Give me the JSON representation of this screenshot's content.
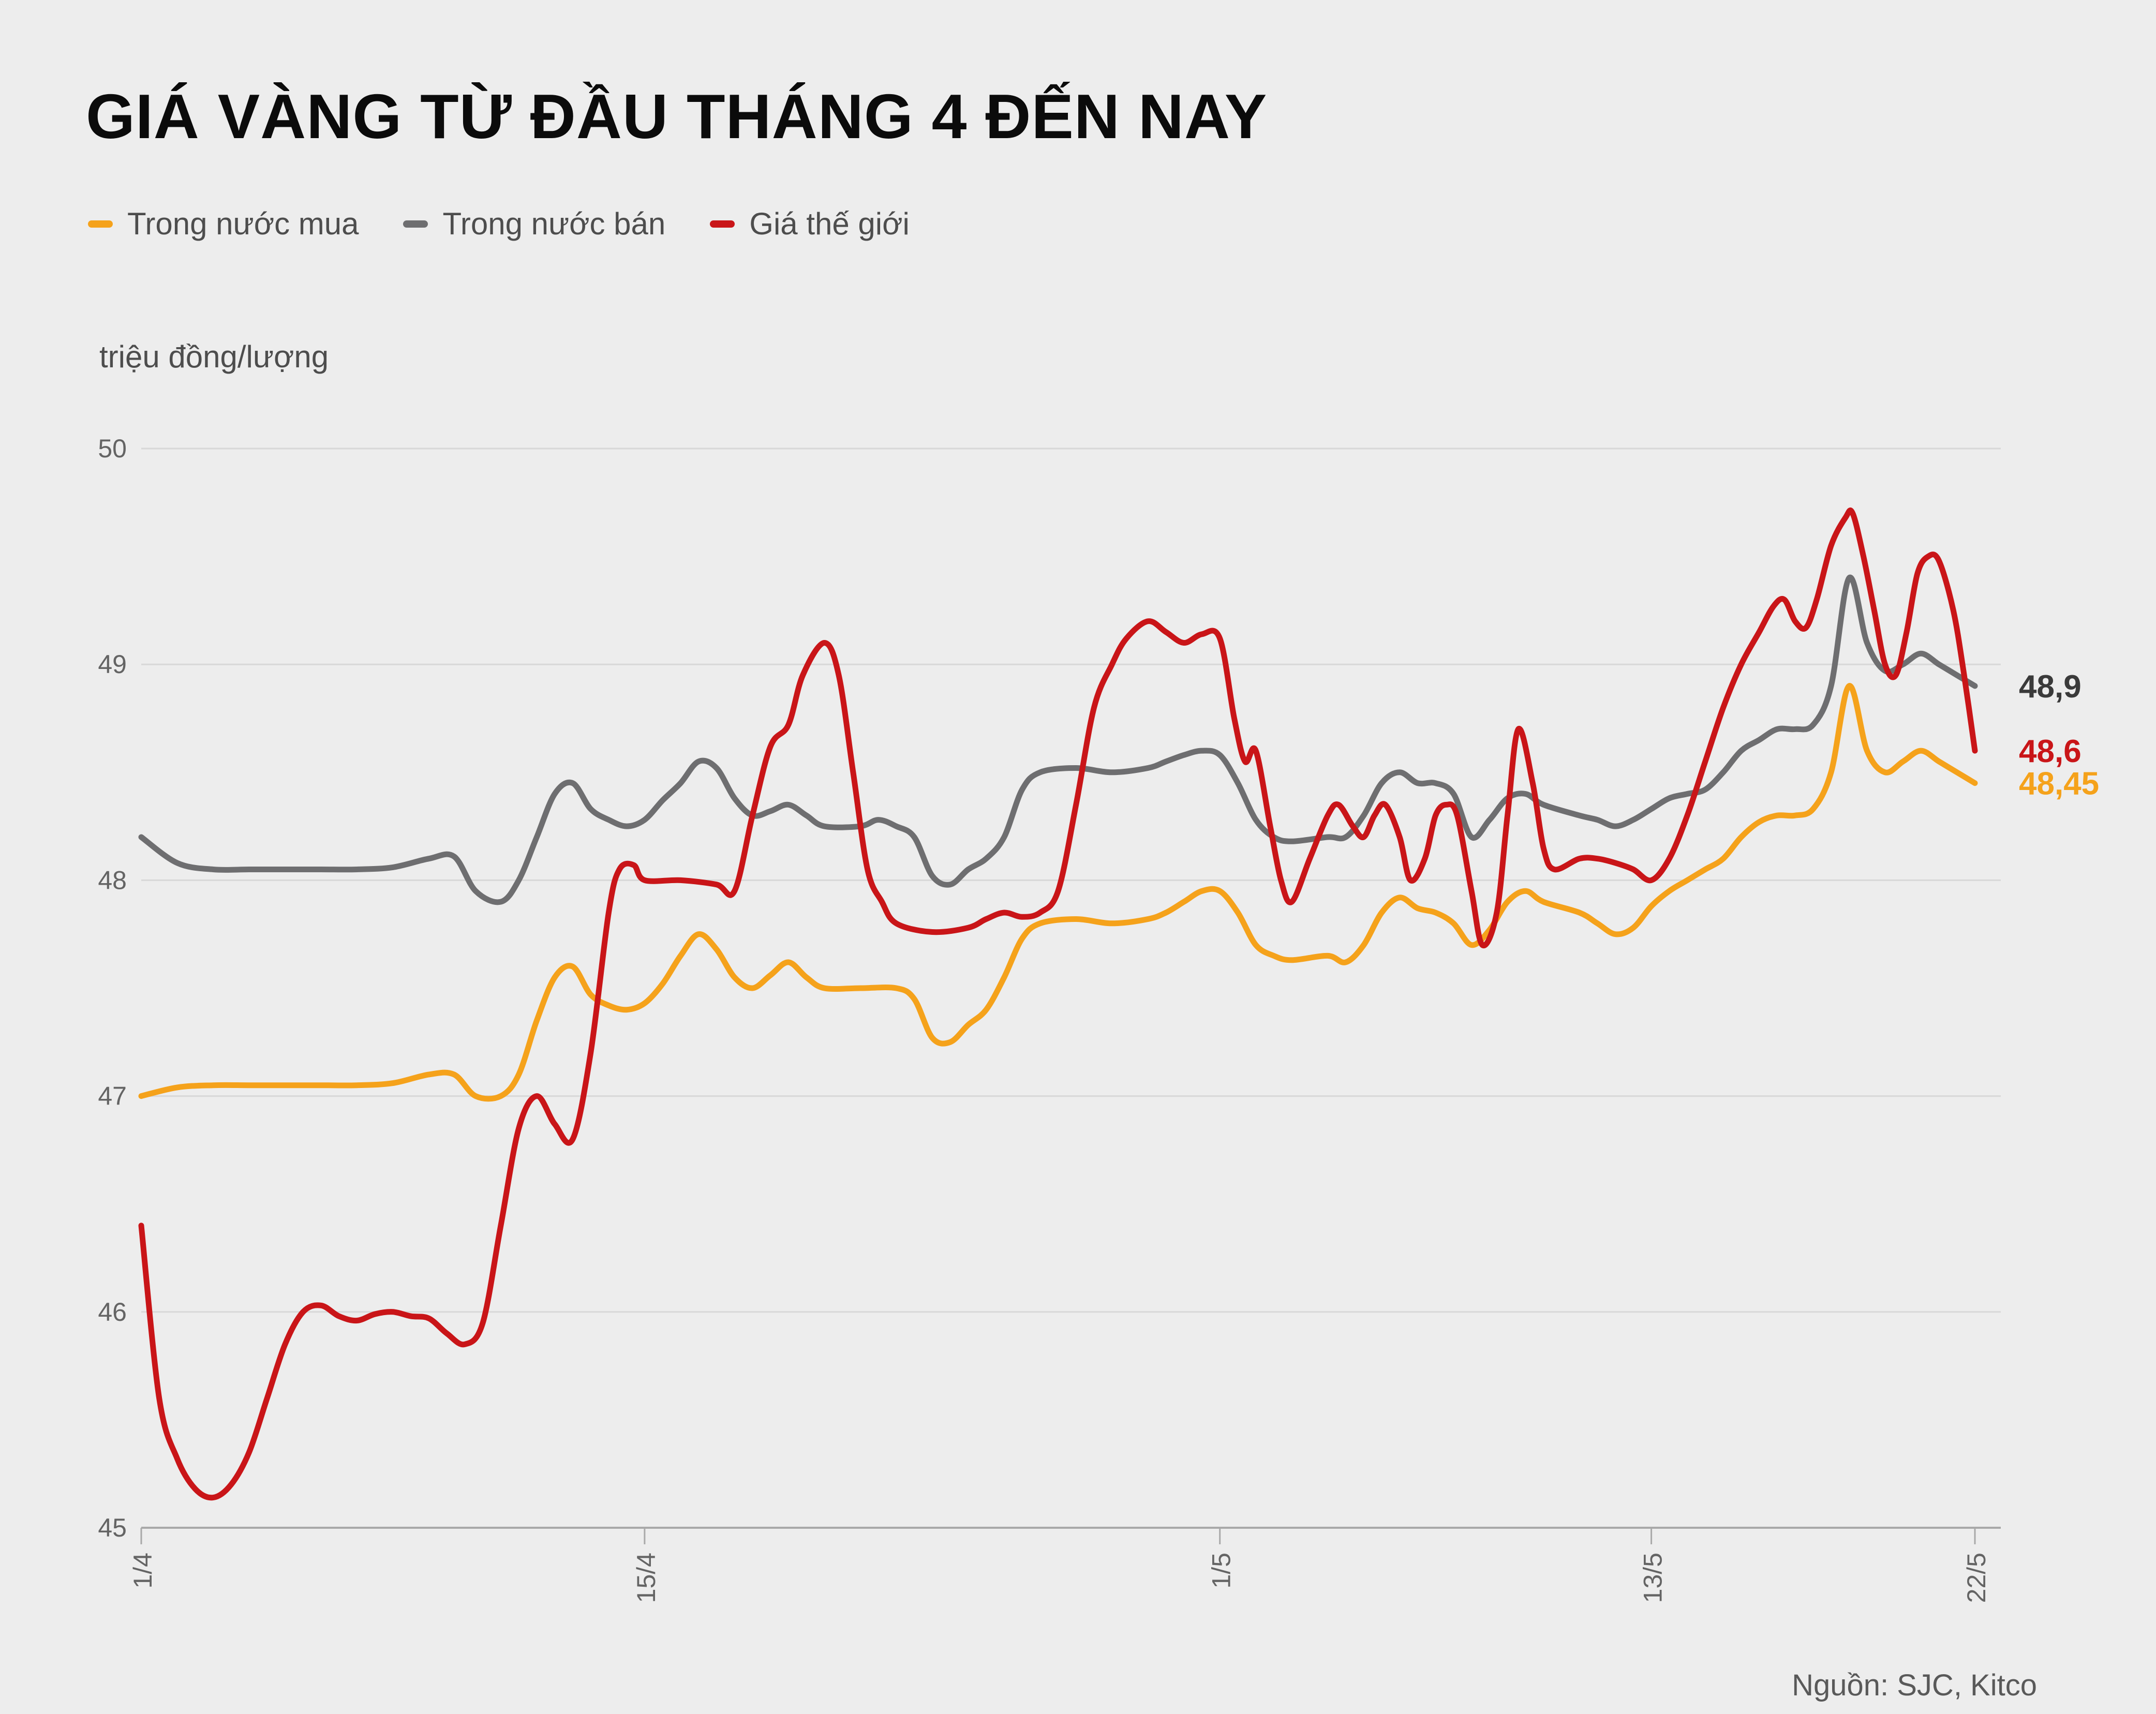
{
  "chart_data": {
    "type": "line",
    "title": "GIÁ VÀNG TỪ ĐẦU THÁNG 4 ĐẾN NAY",
    "unit_label": "triệu đồng/lượng",
    "source": "Nguồn: SJC, Kitco",
    "x_unit": "days since 1/4",
    "xlim": [
      0,
      51
    ],
    "ylim": [
      45,
      50
    ],
    "grid": "horizontal",
    "legend_position": "top-left",
    "y_ticks": [
      45,
      46,
      47,
      48,
      49,
      50
    ],
    "x_ticks": [
      {
        "label": "1/4",
        "day": 0
      },
      {
        "label": "15/4",
        "day": 14
      },
      {
        "label": "1/5",
        "day": 30
      },
      {
        "label": "13/5",
        "day": 42
      },
      {
        "label": "22/5",
        "day": 51
      }
    ],
    "series": [
      {
        "id": "trong-nuoc-mua",
        "name": "Trong nước mua",
        "color": "#F5A21B",
        "label_color": "#F5A21B",
        "end_label": "48,45",
        "points": [
          [
            0,
            47.0
          ],
          [
            1,
            47.04
          ],
          [
            2,
            47.05
          ],
          [
            3,
            47.05
          ],
          [
            4,
            47.05
          ],
          [
            5,
            47.05
          ],
          [
            6,
            47.05
          ],
          [
            7,
            47.06
          ],
          [
            8,
            47.1
          ],
          [
            8.7,
            47.1
          ],
          [
            9.3,
            47.0
          ],
          [
            10,
            47.0
          ],
          [
            10.5,
            47.1
          ],
          [
            11,
            47.35
          ],
          [
            11.5,
            47.55
          ],
          [
            12,
            47.6
          ],
          [
            12.5,
            47.47
          ],
          [
            13,
            47.42
          ],
          [
            13.5,
            47.4
          ],
          [
            14,
            47.43
          ],
          [
            14.5,
            47.52
          ],
          [
            15,
            47.65
          ],
          [
            15.5,
            47.75
          ],
          [
            16,
            47.68
          ],
          [
            16.5,
            47.55
          ],
          [
            17,
            47.5
          ],
          [
            17.5,
            47.56
          ],
          [
            18,
            47.62
          ],
          [
            18.5,
            47.55
          ],
          [
            19,
            47.5
          ],
          [
            20,
            47.5
          ],
          [
            21,
            47.5
          ],
          [
            21.5,
            47.45
          ],
          [
            22,
            47.27
          ],
          [
            22.5,
            47.25
          ],
          [
            23,
            47.33
          ],
          [
            23.5,
            47.4
          ],
          [
            24,
            47.55
          ],
          [
            24.5,
            47.73
          ],
          [
            25,
            47.8
          ],
          [
            26,
            47.82
          ],
          [
            27,
            47.8
          ],
          [
            28,
            47.82
          ],
          [
            28.5,
            47.85
          ],
          [
            29,
            47.9
          ],
          [
            29.5,
            47.95
          ],
          [
            30,
            47.95
          ],
          [
            30.5,
            47.85
          ],
          [
            31,
            47.7
          ],
          [
            31.5,
            47.65
          ],
          [
            32,
            47.63
          ],
          [
            33,
            47.65
          ],
          [
            33.5,
            47.62
          ],
          [
            34,
            47.7
          ],
          [
            34.5,
            47.85
          ],
          [
            35,
            47.92
          ],
          [
            35.5,
            47.87
          ],
          [
            36,
            47.85
          ],
          [
            36.5,
            47.8
          ],
          [
            37,
            47.7
          ],
          [
            37.5,
            47.77
          ],
          [
            38,
            47.9
          ],
          [
            38.5,
            47.95
          ],
          [
            39,
            47.9
          ],
          [
            40,
            47.85
          ],
          [
            40.5,
            47.8
          ],
          [
            41,
            47.75
          ],
          [
            41.5,
            47.78
          ],
          [
            42,
            47.88
          ],
          [
            42.5,
            47.95
          ],
          [
            43,
            48.0
          ],
          [
            43.5,
            48.05
          ],
          [
            44,
            48.1
          ],
          [
            44.5,
            48.2
          ],
          [
            45,
            48.27
          ],
          [
            45.5,
            48.3
          ],
          [
            46,
            48.3
          ],
          [
            46.5,
            48.33
          ],
          [
            47,
            48.5
          ],
          [
            47.5,
            48.9
          ],
          [
            48,
            48.6
          ],
          [
            48.5,
            48.5
          ],
          [
            49,
            48.55
          ],
          [
            49.5,
            48.6
          ],
          [
            50,
            48.55
          ],
          [
            50.5,
            48.5
          ],
          [
            51,
            48.45
          ]
        ]
      },
      {
        "id": "trong-nuoc-ban",
        "name": "Trong nước bán",
        "color": "#6E6E70",
        "label_color": "#3a3a3a",
        "end_label": "48,9",
        "points": [
          [
            0,
            48.2
          ],
          [
            1,
            48.08
          ],
          [
            2,
            48.05
          ],
          [
            3,
            48.05
          ],
          [
            4,
            48.05
          ],
          [
            5,
            48.05
          ],
          [
            6,
            48.05
          ],
          [
            7,
            48.06
          ],
          [
            8,
            48.1
          ],
          [
            8.7,
            48.11
          ],
          [
            9.3,
            47.95
          ],
          [
            10,
            47.9
          ],
          [
            10.5,
            48.0
          ],
          [
            11,
            48.2
          ],
          [
            11.5,
            48.4
          ],
          [
            12,
            48.45
          ],
          [
            12.5,
            48.33
          ],
          [
            13,
            48.28
          ],
          [
            13.5,
            48.25
          ],
          [
            14,
            48.28
          ],
          [
            14.5,
            48.37
          ],
          [
            15,
            48.45
          ],
          [
            15.5,
            48.55
          ],
          [
            16,
            48.52
          ],
          [
            16.5,
            48.38
          ],
          [
            17,
            48.3
          ],
          [
            17.5,
            48.32
          ],
          [
            18,
            48.35
          ],
          [
            18.5,
            48.3
          ],
          [
            19,
            48.25
          ],
          [
            20,
            48.25
          ],
          [
            20.5,
            48.28
          ],
          [
            21,
            48.25
          ],
          [
            21.5,
            48.2
          ],
          [
            22,
            48.02
          ],
          [
            22.5,
            47.98
          ],
          [
            23,
            48.05
          ],
          [
            23.5,
            48.1
          ],
          [
            24,
            48.2
          ],
          [
            24.5,
            48.42
          ],
          [
            25,
            48.5
          ],
          [
            26,
            48.52
          ],
          [
            27,
            48.5
          ],
          [
            28,
            48.52
          ],
          [
            28.5,
            48.55
          ],
          [
            29,
            48.58
          ],
          [
            29.5,
            48.6
          ],
          [
            30,
            48.58
          ],
          [
            30.5,
            48.45
          ],
          [
            31,
            48.28
          ],
          [
            31.5,
            48.2
          ],
          [
            32,
            48.18
          ],
          [
            33,
            48.2
          ],
          [
            33.5,
            48.2
          ],
          [
            34,
            48.3
          ],
          [
            34.5,
            48.45
          ],
          [
            35,
            48.5
          ],
          [
            35.5,
            48.45
          ],
          [
            36,
            48.45
          ],
          [
            36.5,
            48.4
          ],
          [
            37,
            48.2
          ],
          [
            37.5,
            48.28
          ],
          [
            38,
            48.38
          ],
          [
            38.5,
            48.4
          ],
          [
            39,
            48.35
          ],
          [
            40,
            48.3
          ],
          [
            40.5,
            48.28
          ],
          [
            41,
            48.25
          ],
          [
            41.5,
            48.28
          ],
          [
            42,
            48.33
          ],
          [
            42.5,
            48.38
          ],
          [
            43,
            48.4
          ],
          [
            43.5,
            48.42
          ],
          [
            44,
            48.5
          ],
          [
            44.5,
            48.6
          ],
          [
            45,
            48.65
          ],
          [
            45.5,
            48.7
          ],
          [
            46,
            48.7
          ],
          [
            46.5,
            48.72
          ],
          [
            47,
            48.9
          ],
          [
            47.5,
            49.4
          ],
          [
            48,
            49.1
          ],
          [
            48.5,
            48.97
          ],
          [
            49,
            49.0
          ],
          [
            49.5,
            49.05
          ],
          [
            50,
            49.0
          ],
          [
            50.5,
            48.95
          ],
          [
            51,
            48.9
          ]
        ]
      },
      {
        "id": "gia-the-gioi",
        "name": "Giá thế giới",
        "color": "#C91518",
        "label_color": "#C91518",
        "end_label": "48,6",
        "points": [
          [
            0,
            46.4
          ],
          [
            0.5,
            45.6
          ],
          [
            1,
            45.32
          ],
          [
            1.5,
            45.18
          ],
          [
            2,
            45.14
          ],
          [
            2.5,
            45.2
          ],
          [
            3,
            45.35
          ],
          [
            3.5,
            45.6
          ],
          [
            4,
            45.85
          ],
          [
            4.5,
            46.0
          ],
          [
            5,
            46.03
          ],
          [
            5.5,
            45.98
          ],
          [
            6,
            45.96
          ],
          [
            6.5,
            45.99
          ],
          [
            7,
            46.0
          ],
          [
            7.5,
            45.98
          ],
          [
            8,
            45.97
          ],
          [
            8.5,
            45.9
          ],
          [
            9,
            45.85
          ],
          [
            9.5,
            45.95
          ],
          [
            10,
            46.4
          ],
          [
            10.5,
            46.85
          ],
          [
            11,
            47.0
          ],
          [
            11.5,
            46.87
          ],
          [
            12,
            46.8
          ],
          [
            12.5,
            47.2
          ],
          [
            13,
            47.85
          ],
          [
            13.3,
            48.05
          ],
          [
            13.7,
            48.07
          ],
          [
            14,
            48.0
          ],
          [
            15,
            48.0
          ],
          [
            16,
            47.98
          ],
          [
            16.5,
            47.95
          ],
          [
            17,
            48.3
          ],
          [
            17.5,
            48.62
          ],
          [
            18,
            48.72
          ],
          [
            18.4,
            48.95
          ],
          [
            19,
            49.1
          ],
          [
            19.4,
            48.95
          ],
          [
            19.8,
            48.5
          ],
          [
            20.2,
            48.05
          ],
          [
            20.6,
            47.9
          ],
          [
            21,
            47.8
          ],
          [
            22,
            47.76
          ],
          [
            23,
            47.78
          ],
          [
            23.5,
            47.82
          ],
          [
            24,
            47.85
          ],
          [
            24.5,
            47.83
          ],
          [
            25,
            47.85
          ],
          [
            25.5,
            47.95
          ],
          [
            26,
            48.35
          ],
          [
            26.5,
            48.8
          ],
          [
            27,
            49.0
          ],
          [
            27.4,
            49.12
          ],
          [
            28,
            49.2
          ],
          [
            28.5,
            49.15
          ],
          [
            29,
            49.1
          ],
          [
            29.5,
            49.14
          ],
          [
            30,
            49.12
          ],
          [
            30.4,
            48.75
          ],
          [
            30.7,
            48.55
          ],
          [
            31,
            48.6
          ],
          [
            31.4,
            48.25
          ],
          [
            31.7,
            48.0
          ],
          [
            32,
            47.9
          ],
          [
            32.5,
            48.1
          ],
          [
            33,
            48.3
          ],
          [
            33.3,
            48.35
          ],
          [
            33.7,
            48.25
          ],
          [
            34,
            48.2
          ],
          [
            34.3,
            48.3
          ],
          [
            34.6,
            48.35
          ],
          [
            35,
            48.2
          ],
          [
            35.3,
            48.0
          ],
          [
            35.7,
            48.1
          ],
          [
            36,
            48.3
          ],
          [
            36.3,
            48.35
          ],
          [
            36.6,
            48.3
          ],
          [
            37,
            47.95
          ],
          [
            37.3,
            47.7
          ],
          [
            37.7,
            47.85
          ],
          [
            38,
            48.3
          ],
          [
            38.3,
            48.7
          ],
          [
            38.7,
            48.45
          ],
          [
            39,
            48.15
          ],
          [
            39.3,
            48.05
          ],
          [
            40,
            48.1
          ],
          [
            40.5,
            48.1
          ],
          [
            41,
            48.08
          ],
          [
            41.5,
            48.05
          ],
          [
            42,
            48.0
          ],
          [
            42.5,
            48.1
          ],
          [
            43,
            48.3
          ],
          [
            43.5,
            48.55
          ],
          [
            44,
            48.8
          ],
          [
            44.5,
            49.0
          ],
          [
            45,
            49.15
          ],
          [
            45.4,
            49.27
          ],
          [
            45.7,
            49.3
          ],
          [
            46,
            49.2
          ],
          [
            46.3,
            49.17
          ],
          [
            46.6,
            49.3
          ],
          [
            47,
            49.55
          ],
          [
            47.4,
            49.68
          ],
          [
            47.6,
            49.7
          ],
          [
            47.9,
            49.5
          ],
          [
            48.2,
            49.25
          ],
          [
            48.5,
            49.0
          ],
          [
            48.8,
            48.95
          ],
          [
            49.1,
            49.15
          ],
          [
            49.4,
            49.42
          ],
          [
            49.7,
            49.5
          ],
          [
            50,
            49.48
          ],
          [
            50.4,
            49.25
          ],
          [
            50.7,
            48.95
          ],
          [
            51,
            48.6
          ]
        ]
      }
    ]
  }
}
